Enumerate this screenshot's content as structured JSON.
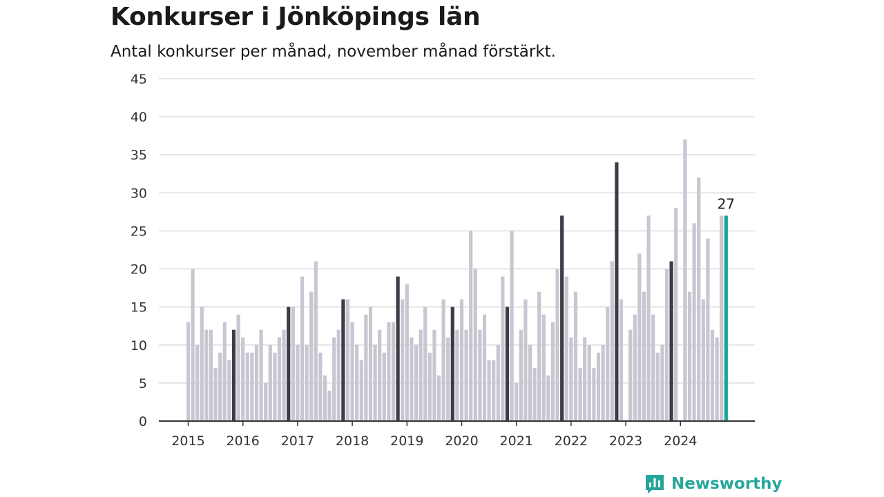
{
  "header": {
    "title": "Konkurser i Jönköpings län",
    "subtitle": "Antal konkurser per månad, november månad förstärkt."
  },
  "brand": {
    "name": "Newsworthy",
    "icon": "bar-chart-logo-icon"
  },
  "colors": {
    "bar": "#c8c7d1",
    "highlight": "#3d3c47",
    "latest": "#1aa597",
    "grid": "#dcdcdc",
    "axis": "#333333",
    "brand": "#26a69a"
  },
  "chart_data": {
    "type": "bar",
    "title": "Konkurser i Jönköpings län",
    "subtitle": "Antal konkurser per månad, november månad förstärkt.",
    "xlabel": "",
    "ylabel": "",
    "ylim": [
      0,
      45
    ],
    "yticks": [
      0,
      5,
      10,
      15,
      20,
      25,
      30,
      35,
      40,
      45
    ],
    "grid": true,
    "legend": "none",
    "year_labels": [
      "2015",
      "2016",
      "2017",
      "2018",
      "2019",
      "2020",
      "2021",
      "2022",
      "2023",
      "2024"
    ],
    "start": "2015-01",
    "highlight_month": 11,
    "latest_label": "27",
    "values": [
      13,
      20,
      10,
      15,
      12,
      12,
      7,
      9,
      13,
      8,
      12,
      14,
      11,
      9,
      9,
      10,
      12,
      5,
      10,
      9,
      11,
      12,
      15,
      15,
      10,
      19,
      10,
      17,
      21,
      9,
      6,
      4,
      11,
      12,
      16,
      16,
      13,
      10,
      8,
      14,
      15,
      10,
      12,
      9,
      13,
      13,
      19,
      16,
      18,
      11,
      10,
      12,
      15,
      9,
      12,
      6,
      16,
      11,
      15,
      12,
      16,
      12,
      25,
      20,
      12,
      14,
      8,
      8,
      10,
      19,
      15,
      25,
      5,
      12,
      16,
      10,
      7,
      17,
      14,
      6,
      13,
      20,
      27,
      19,
      11,
      17,
      7,
      11,
      10,
      7,
      9,
      10,
      15,
      21,
      34,
      16,
      0,
      12,
      14,
      22,
      17,
      27,
      14,
      9,
      10,
      20,
      21,
      28,
      0,
      37,
      17,
      26,
      32,
      16,
      24,
      12,
      11,
      27,
      27
    ]
  }
}
